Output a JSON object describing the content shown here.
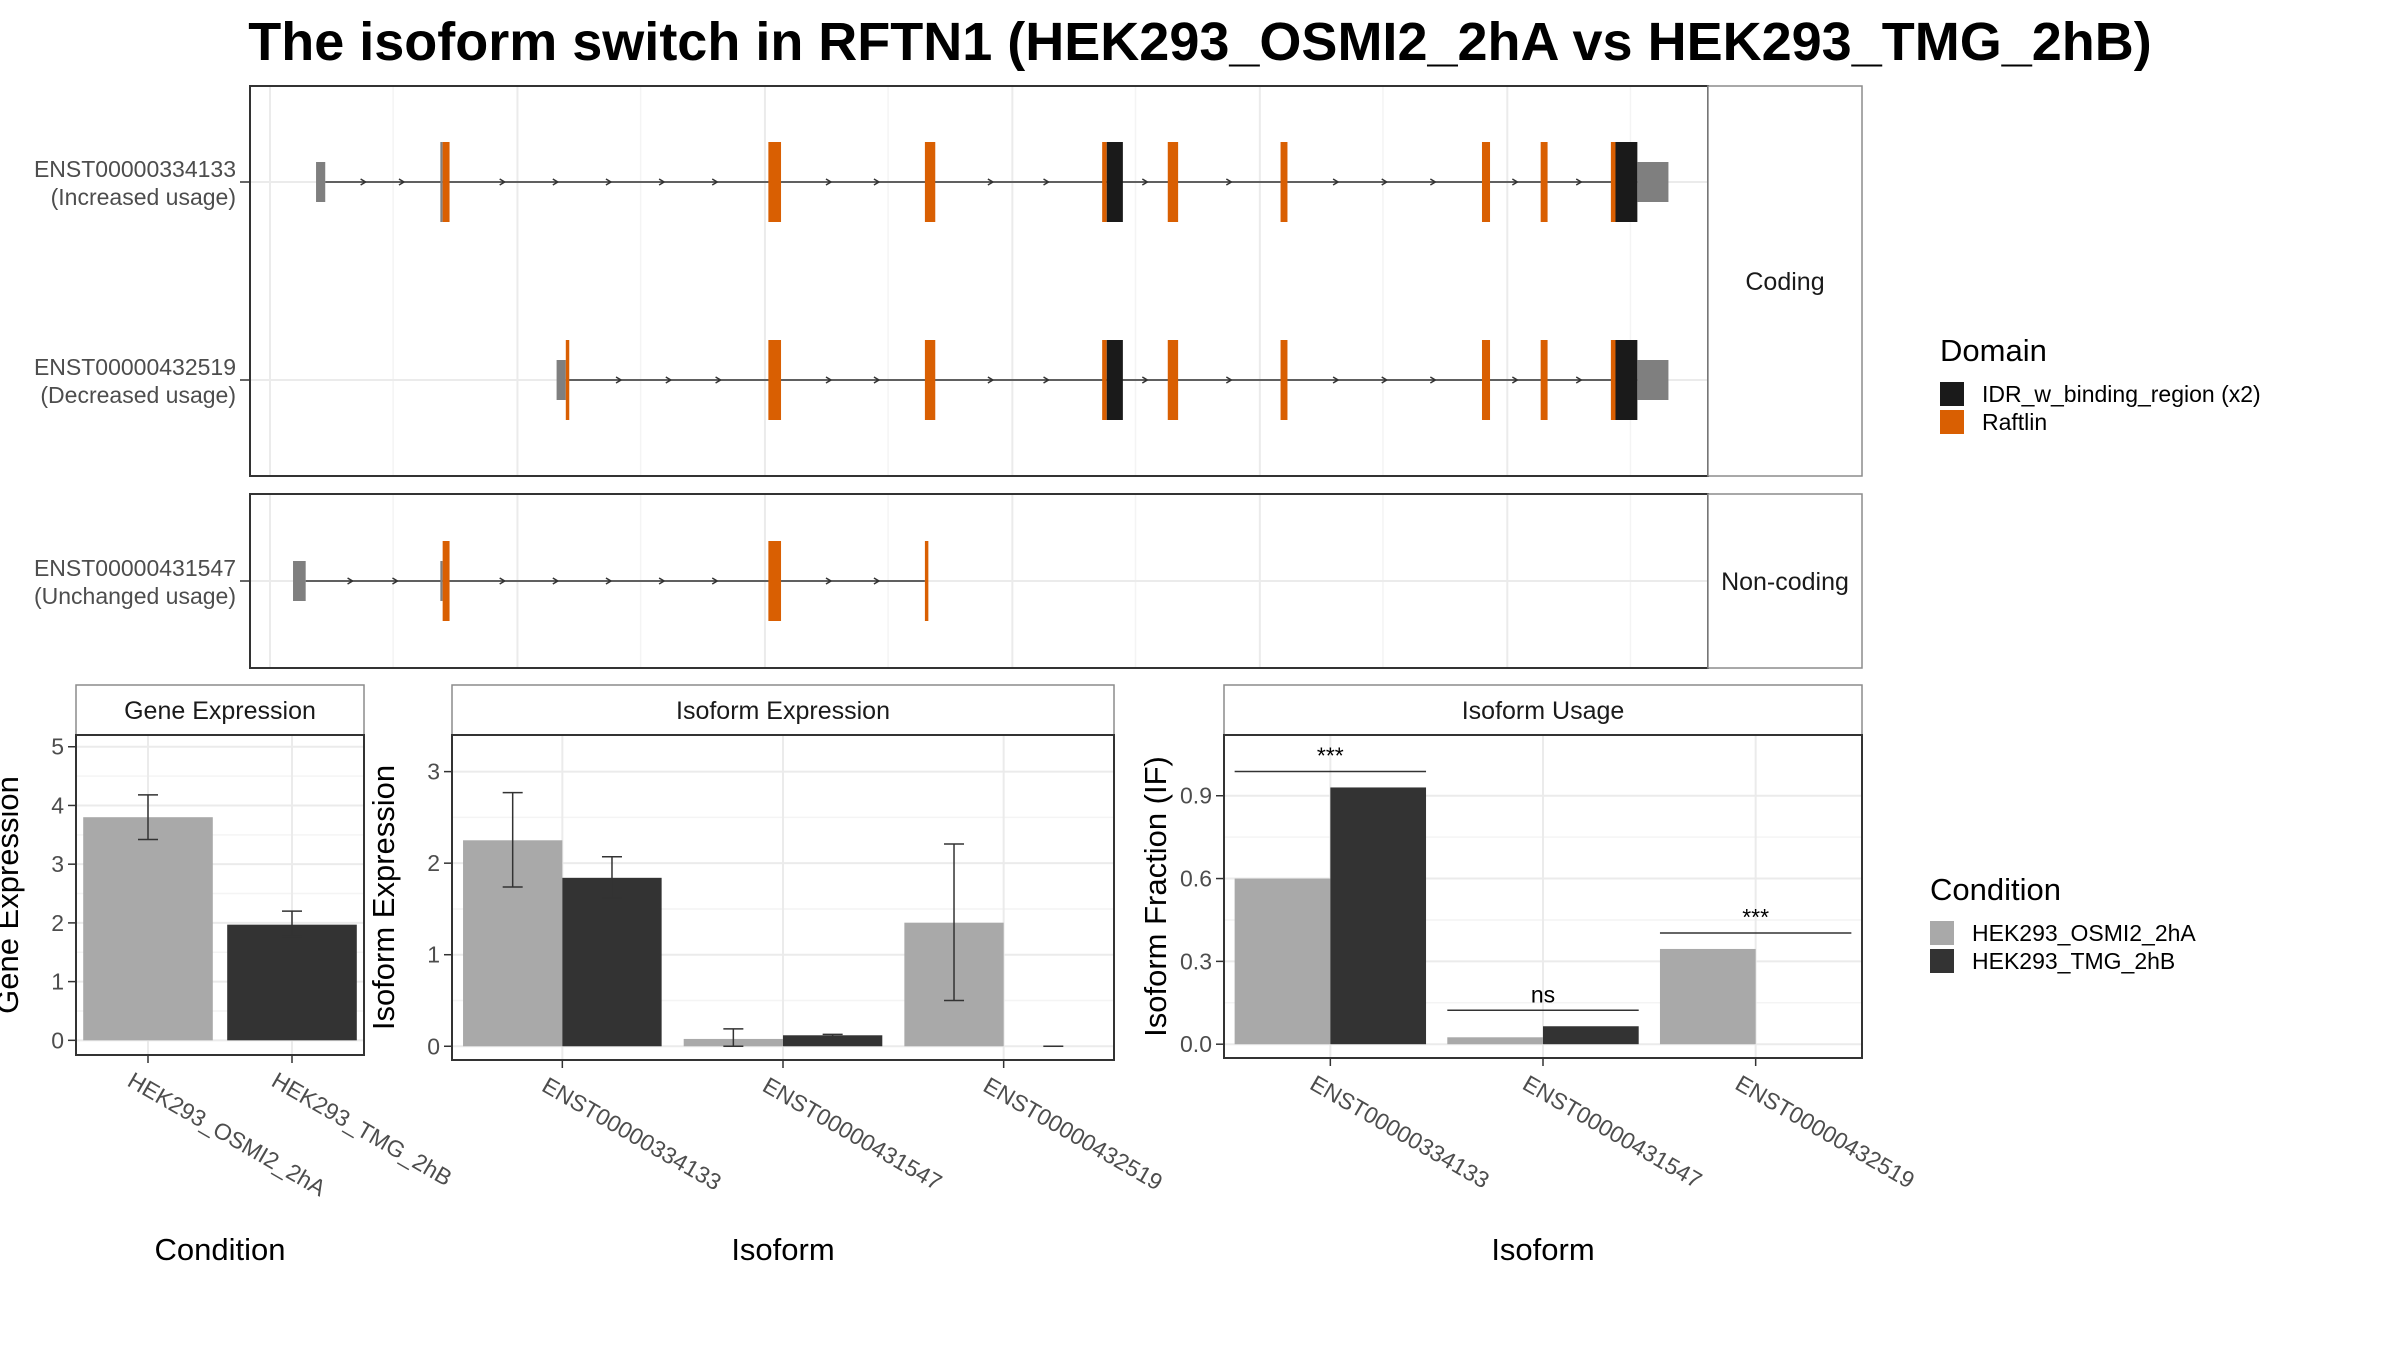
{
  "title": "The isoform switch in RFTN1 (HEK293_OSMI2_2hA vs HEK293_TMG_2hB)",
  "colors": {
    "domain_idr": "#1a1a1a",
    "domain_raftlin": "#d95f02",
    "utr_exon": "#7f7f7f",
    "cond_a": "#a9a9a9",
    "cond_b": "#333333"
  },
  "transcript_plot": {
    "groups": [
      {
        "label": "Coding",
        "transcripts": [
          {
            "id": "ENST00000334133",
            "usage": "(Increased usage)",
            "exons": [
              {
                "start": 40,
                "end": 48,
                "kind": "utr"
              },
              {
                "start": 148,
                "end": 150,
                "kind": "utr"
              },
              {
                "start": 150,
                "end": 156,
                "kind": "raftlin"
              },
              {
                "start": 433,
                "end": 444,
                "kind": "raftlin"
              },
              {
                "start": 569,
                "end": 578,
                "kind": "raftlin"
              },
              {
                "start": 723,
                "end": 727,
                "kind": "raftlin"
              },
              {
                "start": 727,
                "end": 741,
                "kind": "idr"
              },
              {
                "start": 780,
                "end": 789,
                "kind": "raftlin"
              },
              {
                "start": 878,
                "end": 884,
                "kind": "raftlin"
              },
              {
                "start": 1053,
                "end": 1060,
                "kind": "raftlin"
              },
              {
                "start": 1104,
                "end": 1110,
                "kind": "raftlin"
              },
              {
                "start": 1165,
                "end": 1169,
                "kind": "raftlin"
              },
              {
                "start": 1169,
                "end": 1188,
                "kind": "idr"
              },
              {
                "start": 1188,
                "end": 1215,
                "kind": "utr"
              }
            ],
            "cds": [
              148,
              1188
            ]
          },
          {
            "id": "ENST00000432519",
            "usage": "(Decreased usage)",
            "exons": [
              {
                "start": 249,
                "end": 257,
                "kind": "utr"
              },
              {
                "start": 257,
                "end": 260,
                "kind": "raftlin"
              },
              {
                "start": 433,
                "end": 444,
                "kind": "raftlin"
              },
              {
                "start": 569,
                "end": 578,
                "kind": "raftlin"
              },
              {
                "start": 723,
                "end": 727,
                "kind": "raftlin"
              },
              {
                "start": 727,
                "end": 741,
                "kind": "idr"
              },
              {
                "start": 780,
                "end": 789,
                "kind": "raftlin"
              },
              {
                "start": 878,
                "end": 884,
                "kind": "raftlin"
              },
              {
                "start": 1053,
                "end": 1060,
                "kind": "raftlin"
              },
              {
                "start": 1104,
                "end": 1110,
                "kind": "raftlin"
              },
              {
                "start": 1165,
                "end": 1169,
                "kind": "raftlin"
              },
              {
                "start": 1169,
                "end": 1188,
                "kind": "idr"
              },
              {
                "start": 1188,
                "end": 1215,
                "kind": "utr"
              }
            ],
            "cds": [
              257,
              1188
            ]
          }
        ]
      },
      {
        "label": "Non-coding",
        "transcripts": [
          {
            "id": "ENST00000431547",
            "usage": "(Unchanged usage)",
            "exons": [
              {
                "start": 20,
                "end": 31,
                "kind": "utr"
              },
              {
                "start": 148,
                "end": 150,
                "kind": "utr"
              },
              {
                "start": 150,
                "end": 156,
                "kind": "raftlin"
              },
              {
                "start": 433,
                "end": 444,
                "kind": "raftlin"
              },
              {
                "start": 569,
                "end": 572,
                "kind": "raftlin"
              }
            ],
            "cds": null
          }
        ]
      }
    ]
  },
  "legends": {
    "domain": {
      "title": "Domain",
      "items": [
        {
          "label": "IDR_w_binding_region (x2)",
          "color": "#1a1a1a"
        },
        {
          "label": "Raftlin",
          "color": "#d95f02"
        }
      ]
    },
    "condition": {
      "title": "Condition",
      "items": [
        {
          "label": "HEK293_OSMI2_2hA",
          "color": "#a9a9a9"
        },
        {
          "label": "HEK293_TMG_2hB",
          "color": "#333333"
        }
      ]
    }
  },
  "chart_data": [
    {
      "type": "bar",
      "title": "Gene Expression",
      "xlabel": "Condition",
      "ylabel": "Gene Expression",
      "categories": [
        "HEK293_OSMI2_2hA",
        "HEK293_TMG_2hB"
      ],
      "values": [
        3.8,
        1.97
      ],
      "error_low": [
        3.42,
        1.77
      ],
      "error_high": [
        4.18,
        2.2
      ],
      "ylim": [
        -0.25,
        5.2
      ],
      "yticks": [
        "0",
        "1",
        "2",
        "3",
        "4",
        "5"
      ]
    },
    {
      "type": "bar",
      "title": "Isoform Expression",
      "xlabel": "Isoform",
      "ylabel": "Isoform Expression",
      "categories": [
        "ENST00000334133",
        "ENST00000431547",
        "ENST00000432519"
      ],
      "series": [
        {
          "name": "HEK293_OSMI2_2hA",
          "values": [
            2.25,
            0.08,
            1.35
          ],
          "error_low": [
            1.74,
            0.0,
            0.5
          ],
          "error_high": [
            2.77,
            0.19,
            2.21
          ]
        },
        {
          "name": "HEK293_TMG_2hB",
          "values": [
            1.84,
            0.12,
            0.0
          ],
          "error_low": [
            1.62,
            0.11,
            0.0
          ],
          "error_high": [
            2.07,
            0.13,
            0.0
          ]
        }
      ],
      "ylim": [
        -0.15,
        3.4
      ],
      "yticks": [
        "0",
        "1",
        "2",
        "3"
      ]
    },
    {
      "type": "bar",
      "title": "Isoform Usage",
      "xlabel": "Isoform",
      "ylabel": "Isoform Fraction (IF)",
      "categories": [
        "ENST00000334133",
        "ENST00000431547",
        "ENST00000432519"
      ],
      "series": [
        {
          "name": "HEK293_OSMI2_2hA",
          "values": [
            0.6,
            0.025,
            0.345
          ]
        },
        {
          "name": "HEK293_TMG_2hB",
          "values": [
            0.93,
            0.065,
            0.0
          ]
        }
      ],
      "significance": [
        "***",
        "ns",
        "***"
      ],
      "ylim": [
        -0.05,
        1.12
      ],
      "yticks": [
        "0.0",
        "0.3",
        "0.6",
        "0.9"
      ]
    }
  ]
}
